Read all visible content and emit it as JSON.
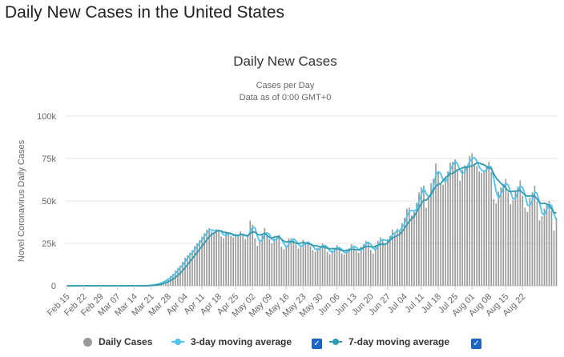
{
  "page_title": "Daily New Cases in the United States",
  "chart_data": {
    "type": "bar",
    "title": "Daily New Cases",
    "subtitle": [
      "Cases per Day",
      "Data as of 0:00 GMT+0"
    ],
    "ylabel": "Novel Coronavirus Daily Cases",
    "xlabel": "",
    "ylim": [
      0,
      100000
    ],
    "yticks": [
      {
        "value": 0,
        "label": "0"
      },
      {
        "value": 25000,
        "label": "25k"
      },
      {
        "value": 50000,
        "label": "50k"
      },
      {
        "value": 75000,
        "label": "75k"
      },
      {
        "value": 100000,
        "label": "100k"
      }
    ],
    "xticks": [
      "Feb 15",
      "Feb 22",
      "Feb 29",
      "Mar 07",
      "Mar 14",
      "Mar 21",
      "Mar 28",
      "Apr 04",
      "Apr 11",
      "Apr 18",
      "Apr 25",
      "May 02",
      "May 09",
      "May 16",
      "May 23",
      "May 30",
      "Jun 06",
      "Jun 13",
      "Jun 20",
      "Jun 27",
      "Jul 04",
      "Jul 11",
      "Jul 18",
      "Jul 25",
      "Aug 01",
      "Aug 08",
      "Aug 15",
      "Aug 22"
    ],
    "start_date": "Feb 15",
    "grid": true,
    "legend_position": "bottom",
    "colors": {
      "bars": "#999999",
      "ma3": "#4dc3ee",
      "ma7": "#2f9ab0"
    },
    "series": [
      {
        "name": "Daily Cases",
        "type": "bar",
        "values": [
          0,
          0,
          0,
          0,
          0,
          0,
          0,
          0,
          0,
          0,
          0,
          0,
          0,
          0,
          0,
          0,
          0,
          0,
          0,
          0,
          0,
          0,
          0,
          0,
          0,
          0,
          0,
          0,
          0,
          0,
          0,
          0,
          100,
          200,
          300,
          500,
          700,
          1000,
          1500,
          2000,
          2800,
          3600,
          4500,
          5800,
          7000,
          9000,
          10500,
          12000,
          14000,
          16500,
          18000,
          19500,
          21000,
          23500,
          25000,
          27000,
          29000,
          31000,
          33000,
          34000,
          32000,
          31500,
          33500,
          33000,
          29000,
          28000,
          32000,
          31000,
          29500,
          28500,
          30500,
          29000,
          32000,
          30000,
          27500,
          29000,
          38500,
          36000,
          28000,
          23500,
          27000,
          30000,
          34000,
          29500,
          27500,
          25000,
          28000,
          29000,
          30000,
          23000,
          21500,
          23500,
          28000,
          28000,
          27000,
          24500,
          22000,
          23000,
          27000,
          24500,
          26000,
          23500,
          21000,
          20000,
          22500,
          23000,
          25000,
          23500,
          20000,
          18500,
          21000,
          22000,
          24000,
          21500,
          19000,
          18500,
          21000,
          22000,
          24500,
          23000,
          20500,
          19500,
          23000,
          24500,
          26500,
          26000,
          21000,
          19000,
          23500,
          26500,
          28500,
          27000,
          25000,
          27500,
          29500,
          33000,
          31000,
          33500,
          32500,
          37000,
          40000,
          45500,
          46000,
          41500,
          44500,
          49000,
          55000,
          58000,
          59000,
          46000,
          52000,
          60500,
          63000,
          72000,
          67000,
          60000,
          59500,
          64000,
          67500,
          72500,
          73000,
          74500,
          68000,
          62000,
          68500,
          71000,
          71000,
          76500,
          78000,
          72000,
          70500,
          67500,
          66500,
          68000,
          70000,
          73000,
          67000,
          51000,
          48500,
          55500,
          58000,
          60000,
          63000,
          55000,
          48000,
          50500,
          56000,
          58500,
          62000,
          53000,
          46000,
          43500,
          52000,
          55000,
          59000,
          49500,
          38500,
          41000,
          45500,
          48500,
          50000,
          44000,
          32500,
          40000
        ]
      },
      {
        "name": "3-day moving average",
        "type": "line"
      },
      {
        "name": "7-day moving average",
        "type": "line"
      }
    ]
  },
  "legend": [
    {
      "label": "Daily Cases",
      "color": "#999999",
      "marker": "dot"
    },
    {
      "label": "3-day moving average",
      "color": "#4dc3ee",
      "marker": "line"
    },
    {
      "label": "7-day moving average",
      "color": "#2f9ab0",
      "marker": "line"
    }
  ],
  "check_glyph": "✓"
}
